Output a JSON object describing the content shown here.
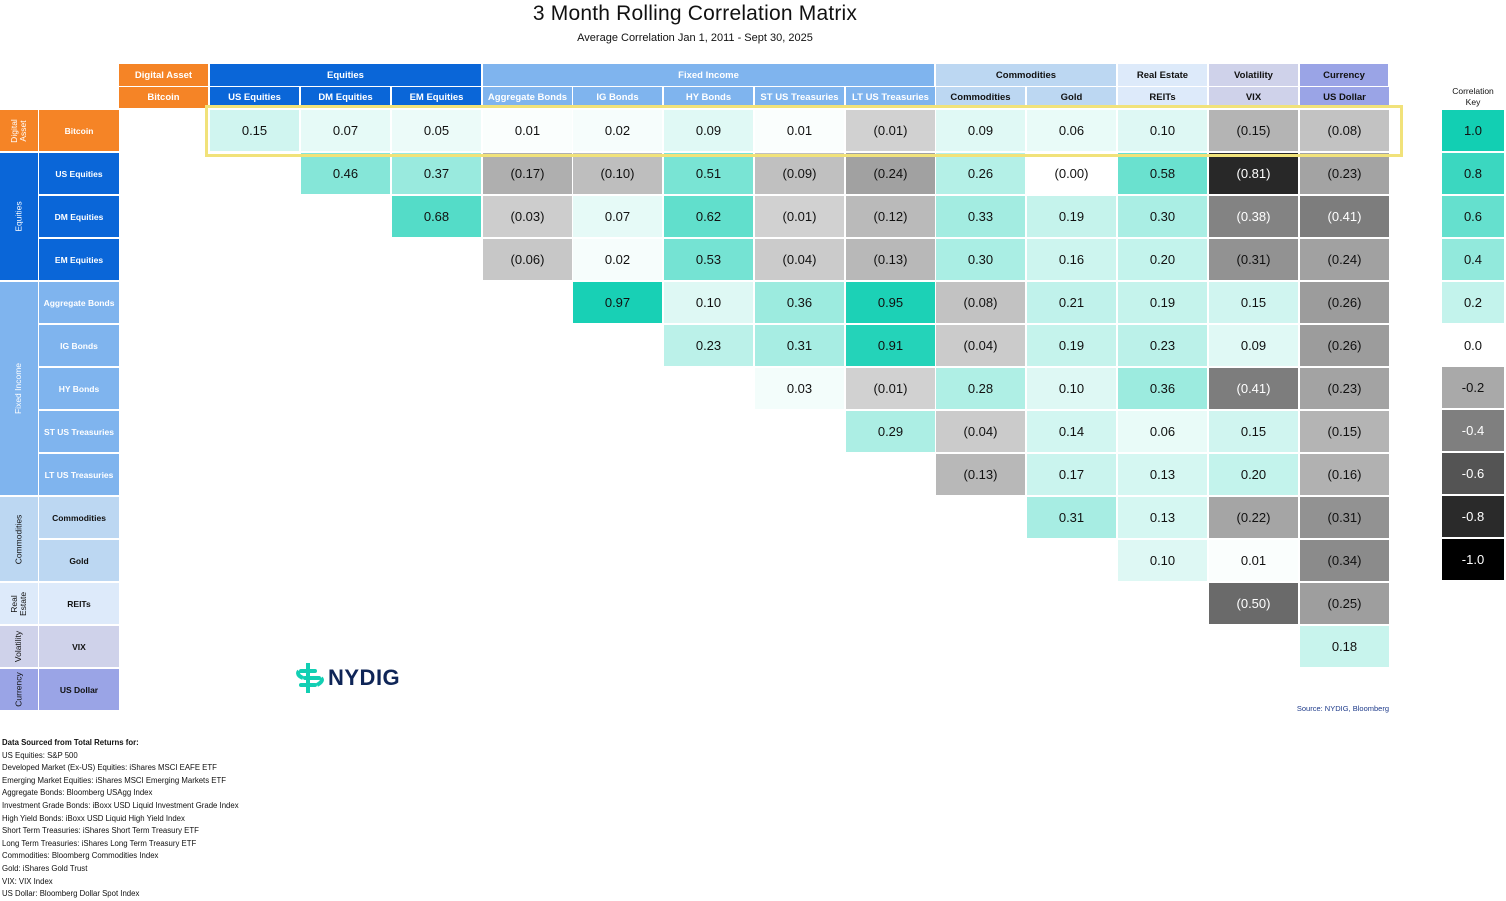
{
  "title": "3 Month Rolling Correlation Matrix",
  "subtitle": "Average Correlation Jan 1, 2011 - Sept 30, 2025",
  "groups": [
    {
      "label": "Digital Asset",
      "color": "#f58426",
      "text": "#ffffff"
    },
    {
      "label": "Equities",
      "color": "#0a66d8",
      "text": "#ffffff"
    },
    {
      "label": "Fixed Income",
      "color": "#7fb4ee",
      "text": "#ffffff"
    },
    {
      "label": "Commodities",
      "color": "#bcd7f2",
      "text": "#111111"
    },
    {
      "label": "Real Estate",
      "color": "#ddeafa",
      "text": "#111111"
    },
    {
      "label": "Volatility",
      "color": "#cfd2ea",
      "text": "#111111"
    },
    {
      "label": "Currency",
      "color": "#9aa4e6",
      "text": "#111111"
    }
  ],
  "row_groups": [
    {
      "label": "Digital\nAsset"
    },
    {
      "label": "Equities"
    },
    {
      "label": "Fixed Income"
    },
    {
      "label": "Commodities"
    },
    {
      "label": "Real\nEstate"
    },
    {
      "label": "Volatility"
    },
    {
      "label": "Currency"
    }
  ],
  "assets": [
    "Bitcoin",
    "US Equities",
    "DM Equities",
    "EM Equities",
    "Aggregate Bonds",
    "IG Bonds",
    "HY Bonds",
    "ST US Treasuries",
    "LT US Treasuries",
    "Commodities",
    "Gold",
    "REITs",
    "VIX",
    "US Dollar"
  ],
  "row_labels": [
    "Bitcoin",
    "US Equities",
    "DM Equities",
    "EM Equities",
    "Aggregate Bonds",
    "IG Bonds",
    "HY Bonds",
    "ST US Treasuries",
    "LT US Treasuries",
    "Commodities",
    "Gold",
    "REITs",
    "VIX",
    "US Dollar"
  ],
  "chart_data": {
    "type": "heatmap",
    "title": "3 Month Rolling Correlation Matrix",
    "subtitle": "Average Correlation Jan 1, 2011 - Sept 30, 2025",
    "columns": [
      "US Equities",
      "DM Equities",
      "EM Equities",
      "Aggregate Bonds",
      "IG Bonds",
      "HY Bonds",
      "ST US Treasuries",
      "LT US Treasuries",
      "Commodities",
      "Gold",
      "REITs",
      "VIX",
      "US Dollar"
    ],
    "rows": [
      "Bitcoin",
      "US Equities",
      "DM Equities",
      "EM Equities",
      "Aggregate Bonds",
      "IG Bonds",
      "HY Bonds",
      "ST US Treasuries",
      "LT US Treasuries",
      "Commodities",
      "Gold",
      "REITs",
      "VIX"
    ],
    "values": [
      [
        0.15,
        0.07,
        0.05,
        0.01,
        0.02,
        0.09,
        0.01,
        -0.01,
        0.09,
        0.06,
        0.1,
        -0.15,
        -0.08
      ],
      [
        null,
        0.46,
        0.37,
        -0.17,
        -0.1,
        0.51,
        -0.09,
        -0.24,
        0.26,
        -0.0,
        0.58,
        -0.81,
        -0.23
      ],
      [
        null,
        null,
        0.68,
        -0.03,
        0.07,
        0.62,
        -0.01,
        -0.12,
        0.33,
        0.19,
        0.3,
        -0.38,
        -0.41
      ],
      [
        null,
        null,
        null,
        -0.06,
        0.02,
        0.53,
        -0.04,
        -0.13,
        0.3,
        0.16,
        0.2,
        -0.31,
        -0.24
      ],
      [
        null,
        null,
        null,
        null,
        0.97,
        0.1,
        0.36,
        0.95,
        -0.08,
        0.21,
        0.19,
        0.15,
        -0.26
      ],
      [
        null,
        null,
        null,
        null,
        null,
        0.23,
        0.31,
        0.91,
        -0.04,
        0.19,
        0.23,
        0.09,
        -0.26
      ],
      [
        null,
        null,
        null,
        null,
        null,
        null,
        0.03,
        -0.01,
        0.28,
        0.1,
        0.36,
        -0.41,
        -0.23
      ],
      [
        null,
        null,
        null,
        null,
        null,
        null,
        null,
        0.29,
        -0.04,
        0.14,
        0.06,
        0.15,
        -0.15
      ],
      [
        null,
        null,
        null,
        null,
        null,
        null,
        null,
        null,
        -0.13,
        0.17,
        0.13,
        0.2,
        -0.16
      ],
      [
        null,
        null,
        null,
        null,
        null,
        null,
        null,
        null,
        null,
        0.31,
        0.13,
        -0.22,
        -0.31
      ],
      [
        null,
        null,
        null,
        null,
        null,
        null,
        null,
        null,
        null,
        null,
        0.1,
        0.01,
        -0.34
      ],
      [
        null,
        null,
        null,
        null,
        null,
        null,
        null,
        null,
        null,
        null,
        null,
        -0.5,
        -0.25
      ],
      [
        null,
        null,
        null,
        null,
        null,
        null,
        null,
        null,
        null,
        null,
        null,
        null,
        0.18
      ]
    ],
    "display": [
      [
        "0.15",
        "0.07",
        "0.05",
        "0.01",
        "0.02",
        "0.09",
        "0.01",
        "(0.01)",
        "0.09",
        "0.06",
        "0.10",
        "(0.15)",
        "(0.08)"
      ],
      [
        "",
        "0.46",
        "0.37",
        "(0.17)",
        "(0.10)",
        "0.51",
        "(0.09)",
        "(0.24)",
        "0.26",
        "(0.00)",
        "0.58",
        "(0.81)",
        "(0.23)"
      ],
      [
        "",
        "",
        "0.68",
        "(0.03)",
        "0.07",
        "0.62",
        "(0.01)",
        "(0.12)",
        "0.33",
        "0.19",
        "0.30",
        "(0.38)",
        "(0.41)"
      ],
      [
        "",
        "",
        "",
        "(0.06)",
        "0.02",
        "0.53",
        "(0.04)",
        "(0.13)",
        "0.30",
        "0.16",
        "0.20",
        "(0.31)",
        "(0.24)"
      ],
      [
        "",
        "",
        "",
        "",
        "0.97",
        "0.10",
        "0.36",
        "0.95",
        "(0.08)",
        "0.21",
        "0.19",
        "0.15",
        "(0.26)"
      ],
      [
        "",
        "",
        "",
        "",
        "",
        "0.23",
        "0.31",
        "0.91",
        "(0.04)",
        "0.19",
        "0.23",
        "0.09",
        "(0.26)"
      ],
      [
        "",
        "",
        "",
        "",
        "",
        "",
        "0.03",
        "(0.01)",
        "0.28",
        "0.10",
        "0.36",
        "(0.41)",
        "(0.23)"
      ],
      [
        "",
        "",
        "",
        "",
        "",
        "",
        "",
        "0.29",
        "(0.04)",
        "0.14",
        "0.06",
        "0.15",
        "(0.15)"
      ],
      [
        "",
        "",
        "",
        "",
        "",
        "",
        "",
        "",
        "(0.13)",
        "0.17",
        "0.13",
        "0.20",
        "(0.16)"
      ],
      [
        "",
        "",
        "",
        "",
        "",
        "",
        "",
        "",
        "",
        "0.31",
        "0.13",
        "(0.22)",
        "(0.31)"
      ],
      [
        "",
        "",
        "",
        "",
        "",
        "",
        "",
        "",
        "",
        "",
        "0.10",
        "0.01",
        "(0.34)"
      ],
      [
        "",
        "",
        "",
        "",
        "",
        "",
        "",
        "",
        "",
        "",
        "",
        "(0.50)",
        "(0.25)"
      ],
      [
        "",
        "",
        "",
        "",
        "",
        "",
        "",
        "",
        "",
        "",
        "",
        "",
        "0.18"
      ]
    ],
    "highlighted_row": "Bitcoin",
    "color_scale": {
      "positive": "#12cfb3",
      "negative": "#000000",
      "neutral": "#ffffff"
    }
  },
  "key": {
    "title": "Correlation\nKey",
    "labels": [
      "1.0",
      "0.8",
      "0.6",
      "0.4",
      "0.2",
      "0.0",
      "-0.2",
      "-0.4",
      "-0.6",
      "-0.8",
      "-1.0"
    ],
    "values": [
      1.0,
      0.8,
      0.6,
      0.4,
      0.2,
      0.0,
      -0.2,
      -0.4,
      -0.6,
      -0.8,
      -1.0
    ]
  },
  "logo": {
    "text": "NYDIG",
    "color": "#0f2557",
    "accent": "#12cfb3"
  },
  "source": "Source: NYDIG, Bloomberg",
  "notes": [
    "Data Sourced from Total Returns for:",
    "US Equities: S&P 500",
    "Developed Market (Ex-US) Equities: iShares MSCI EAFE ETF",
    "Emerging Market Equities: iShares MSCI Emerging Markets ETF",
    "Aggregate Bonds: Bloomberg USAgg Index",
    "Investment Grade Bonds: iBoxx USD Liquid Investment Grade Index",
    "High Yield Bonds: iBoxx USD Liquid High Yield Index",
    "Short Term Treasuries: iShares Short Term Treasury ETF",
    "Long Term Treasuries: iShares Long Term Treasury ETF",
    "Commodities: Bloomberg Commodities Index",
    "Gold: iShares Gold Trust",
    "VIX: VIX Index",
    "US Dollar: Bloomberg Dollar Spot Index"
  ]
}
